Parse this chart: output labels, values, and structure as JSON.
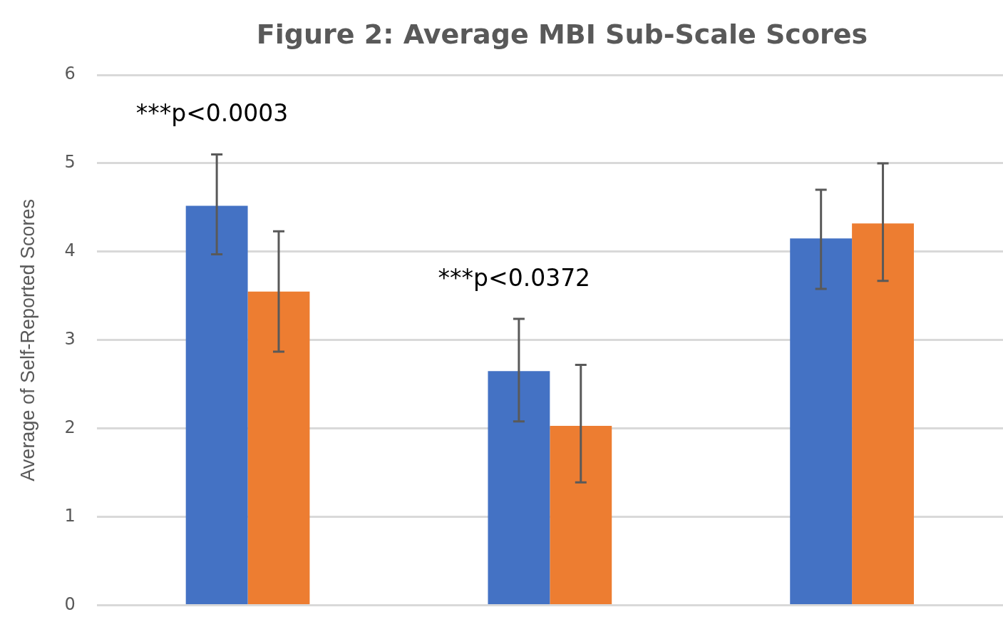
{
  "chart_data": {
    "type": "bar",
    "title": "Figure 2: Average MBI Sub-Scale Scores",
    "ylabel": "Average of Self-Reported Scores",
    "categories": [
      null,
      null,
      null
    ],
    "series": [
      {
        "color": "#4472c4",
        "values": [
          4.52,
          2.65,
          4.15
        ],
        "errors": [
          [
            3.97,
            5.1
          ],
          [
            2.08,
            3.24
          ],
          [
            3.58,
            4.7
          ]
        ]
      },
      {
        "color": "#ed7d31",
        "values": [
          3.55,
          2.03,
          4.32
        ],
        "errors": [
          [
            2.87,
            4.23
          ],
          [
            1.39,
            2.72
          ],
          [
            3.67,
            5.0
          ]
        ]
      }
    ],
    "annotations": [
      "***p<0.0003",
      "***p<0.0372"
    ],
    "ylim": [
      0,
      6
    ],
    "yticks": [
      0,
      1,
      2,
      3,
      4,
      5,
      6
    ],
    "grid": "y",
    "legend": false,
    "tick_labels": "y"
  }
}
